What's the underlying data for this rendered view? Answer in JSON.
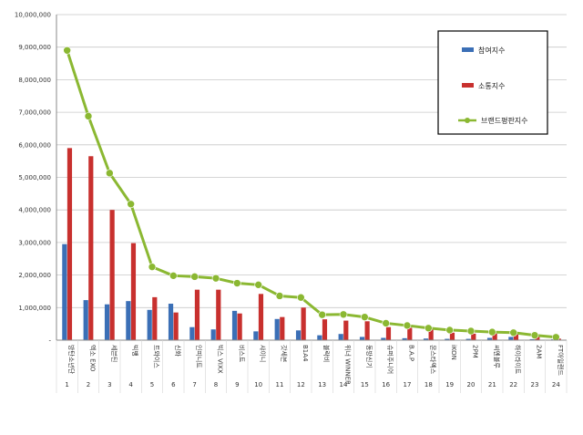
{
  "chart_data": {
    "type": "bar",
    "title": "",
    "xlabel": "",
    "ylabel": "",
    "ylim": [
      0,
      10000000
    ],
    "yticks": [
      "-",
      "1,000,000",
      "2,000,000",
      "3,000,000",
      "4,000,000",
      "5,000,000",
      "6,000,000",
      "7,000,000",
      "8,000,000",
      "9,000,000",
      "10,000,000"
    ],
    "grid": true,
    "legend_position": "top-right",
    "indices": [
      "1",
      "2",
      "3",
      "4",
      "5",
      "6",
      "7",
      "8",
      "9",
      "10",
      "11",
      "12",
      "13",
      "14",
      "15",
      "16",
      "17",
      "18",
      "19",
      "20",
      "21",
      "22",
      "23",
      "24"
    ],
    "categories": [
      "방탄소년단",
      "엑소 EXO",
      "세븐틴",
      "빅뱅",
      "트와이스",
      "신화",
      "인피니트",
      "빅스 VIXX",
      "비스트",
      "샤이니",
      "갓세븐",
      "B1A4",
      "블락비",
      "위너 WINNER",
      "동방신기",
      "슈퍼주니어",
      "B.A.P",
      "몬스타엑스",
      "iKON",
      "2PM",
      "씨엔블루",
      "하이라이트",
      "2AM",
      "FT아일랜드"
    ],
    "series": [
      {
        "name": "참여지수",
        "type": "bar",
        "color": "#3b6fb6",
        "values": [
          2950000,
          1230000,
          1100000,
          1200000,
          930000,
          1120000,
          400000,
          330000,
          900000,
          270000,
          650000,
          300000,
          150000,
          190000,
          100000,
          70000,
          60000,
          50000,
          40000,
          40000,
          70000,
          100000,
          30000,
          25000
        ]
      },
      {
        "name": "소통지수",
        "type": "bar",
        "color": "#c8302e",
        "values": [
          5900000,
          5650000,
          4000000,
          2980000,
          1320000,
          850000,
          1550000,
          1550000,
          820000,
          1420000,
          710000,
          1000000,
          640000,
          600000,
          580000,
          400000,
          380000,
          330000,
          230000,
          200000,
          200000,
          180000,
          100000,
          50000
        ]
      },
      {
        "name": "브랜드평판지수",
        "type": "line",
        "color": "#8bb832",
        "values": [
          8900000,
          6880000,
          5130000,
          4180000,
          2250000,
          1980000,
          1950000,
          1900000,
          1750000,
          1700000,
          1360000,
          1310000,
          780000,
          790000,
          710000,
          520000,
          450000,
          370000,
          310000,
          280000,
          250000,
          230000,
          150000,
          90000
        ]
      }
    ]
  }
}
